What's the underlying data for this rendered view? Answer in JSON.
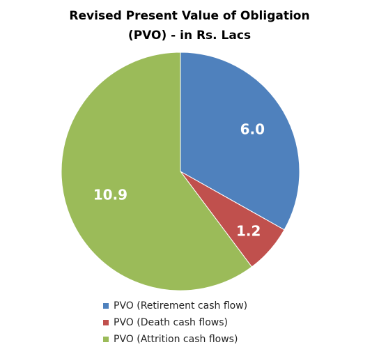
{
  "chart_data": {
    "type": "pie",
    "title_line1": "Revised Present Value of Obligation",
    "title_line2": "(PVO) - in Rs. Lacs",
    "start_angle_deg": 0,
    "direction": "clockwise",
    "legend_position": "bottom",
    "slices": [
      {
        "label": "PVO (Retirement cash flow)",
        "value": 6.0,
        "display": "6.0",
        "color": "#4F81BD"
      },
      {
        "label": "PVO (Death cash flows)",
        "value": 1.2,
        "display": "1.2",
        "color": "#C0504D"
      },
      {
        "label": "PVO (Attrition cash flows)",
        "value": 10.9,
        "display": "10.9",
        "color": "#9BBB59"
      }
    ]
  }
}
